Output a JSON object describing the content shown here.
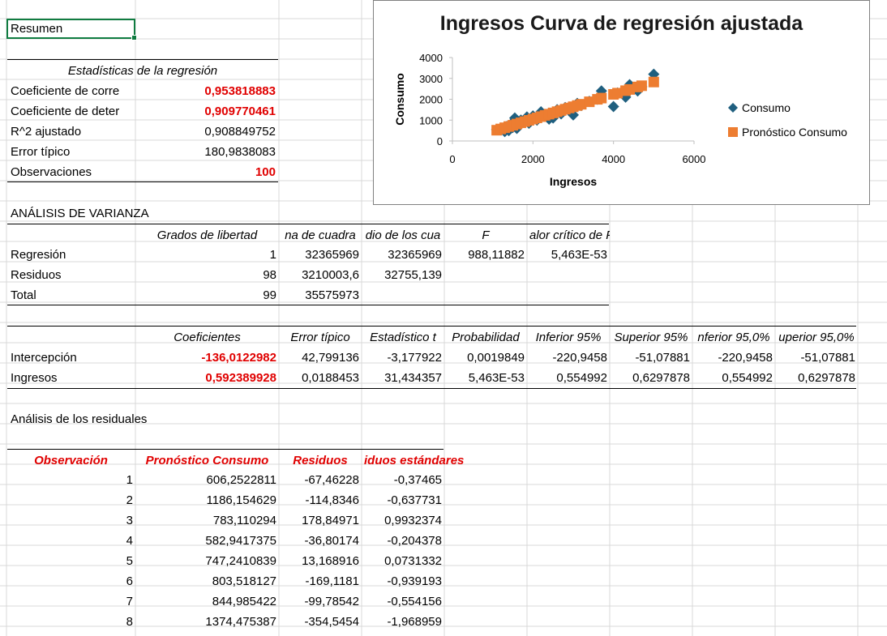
{
  "summary": {
    "title": "Resumen"
  },
  "regression_stats": {
    "header": "Estadísticas de la regresión",
    "rows": [
      {
        "label": "Coeficiente de corre",
        "value": "0,953818883",
        "highlight": true
      },
      {
        "label": "Coeficiente de deter",
        "value": "0,909770461",
        "highlight": true
      },
      {
        "label": "R^2  ajustado",
        "value": "0,908849752",
        "highlight": false
      },
      {
        "label": "Error típico",
        "value": "180,9838083",
        "highlight": false
      },
      {
        "label": "Observaciones",
        "value": "100",
        "highlight": true
      }
    ]
  },
  "anova": {
    "title": "ANÁLISIS DE VARIANZA",
    "headers": [
      "Grados de libertad",
      "na de cuadra",
      "dio de los cua",
      "F",
      "alor crítico de F"
    ],
    "rows": [
      {
        "label": "Regresión",
        "cells": [
          "1",
          "32365969",
          "32365969",
          "988,11882",
          "5,463E-53"
        ]
      },
      {
        "label": "Residuos",
        "cells": [
          "98",
          "3210003,6",
          "32755,139",
          "",
          ""
        ]
      },
      {
        "label": "Total",
        "cells": [
          "99",
          "35575973",
          "",
          "",
          ""
        ]
      }
    ]
  },
  "coefficients": {
    "headers": [
      "Coeficientes",
      "Error típico",
      "Estadístico t",
      "Probabilidad",
      "Inferior 95%",
      "Superior 95%",
      "nferior 95,0%",
      "uperior 95,0%"
    ],
    "rows": [
      {
        "label": "Intercepción",
        "cells": [
          "-136,0122982",
          "42,799136",
          "-3,177922",
          "0,0019849",
          "-220,9458",
          "-51,07881",
          "-220,9458",
          "-51,07881"
        ]
      },
      {
        "label": "Ingresos",
        "cells": [
          "0,592389928",
          "0,0188453",
          "31,434357",
          "5,463E-53",
          "0,554992",
          "0,6297878",
          "0,554992",
          "0,6297878"
        ]
      }
    ]
  },
  "residuals": {
    "title": "Análisis de los residuales",
    "headers": [
      "Observación",
      "Pronóstico Consumo",
      "Residuos",
      "iduos estándares"
    ],
    "rows": [
      [
        "1",
        "606,2522811",
        "-67,46228",
        "-0,37465"
      ],
      [
        "2",
        "1186,154629",
        "-114,8346",
        "-0,637731"
      ],
      [
        "3",
        "783,110294",
        "178,84971",
        "0,9932374"
      ],
      [
        "4",
        "582,9417375",
        "-36,80174",
        "-0,204378"
      ],
      [
        "5",
        "747,2410839",
        "13,168916",
        "0,0731332"
      ],
      [
        "6",
        "803,518127",
        "-169,1181",
        "-0,939193"
      ],
      [
        "7",
        "844,985422",
        "-99,78542",
        "-0,554156"
      ],
      [
        "8",
        "1374,475387",
        "-354,5454",
        "-1,968959"
      ]
    ]
  },
  "colors": {
    "red": "#e00000",
    "consumo": "#1f5f7f",
    "pronostico": "#ed7d31",
    "grid": "#d9d9d9"
  },
  "chart_data": {
    "type": "scatter",
    "title": "Ingresos Curva de regresión ajustada",
    "xlabel": "Ingresos",
    "ylabel": "Consumo",
    "xlim": [
      0,
      6000
    ],
    "ylim": [
      0,
      4000
    ],
    "xticks": [
      0,
      2000,
      4000,
      6000
    ],
    "yticks": [
      0,
      1000,
      2000,
      3000,
      4000
    ],
    "legend_position": "right",
    "series": [
      {
        "name": "Consumo",
        "marker": "diamond",
        "color": "#1f5f7f",
        "x": [
          1100,
          1200,
          1300,
          1350,
          1400,
          1450,
          1500,
          1550,
          1600,
          1650,
          1700,
          1800,
          1850,
          1900,
          2000,
          2100,
          2200,
          2300,
          2400,
          2500,
          2600,
          2700,
          2800,
          2900,
          3000,
          3100,
          3200,
          3400,
          3600,
          3700,
          4000,
          4100,
          4300,
          4400,
          4600,
          4700,
          5000
        ],
        "y": [
          550,
          600,
          450,
          700,
          500,
          800,
          650,
          1100,
          600,
          900,
          1000,
          950,
          1150,
          850,
          1200,
          1000,
          1400,
          1250,
          1050,
          1100,
          1500,
          1300,
          1600,
          1450,
          1250,
          1800,
          1700,
          1900,
          2000,
          2400,
          1650,
          2300,
          2100,
          2700,
          2400,
          2600,
          3200
        ]
      },
      {
        "name": "Pronóstico Consumo",
        "marker": "square",
        "color": "#ed7d31",
        "x": [
          1100,
          1200,
          1300,
          1400,
          1500,
          1600,
          1700,
          1800,
          1900,
          2000,
          2100,
          2200,
          2300,
          2400,
          2500,
          2600,
          2700,
          2800,
          2900,
          3000,
          3100,
          3200,
          3400,
          3600,
          3700,
          4000,
          4100,
          4300,
          4400,
          4600,
          4700,
          5000
        ],
        "y": [
          516,
          575,
          634,
          693,
          752,
          812,
          871,
          930,
          990,
          1049,
          1108,
          1167,
          1227,
          1286,
          1345,
          1404,
          1464,
          1523,
          1582,
          1641,
          1700,
          1760,
          1878,
          1997,
          2056,
          2234,
          2293,
          2411,
          2470,
          2589,
          2648,
          2826
        ]
      }
    ]
  }
}
